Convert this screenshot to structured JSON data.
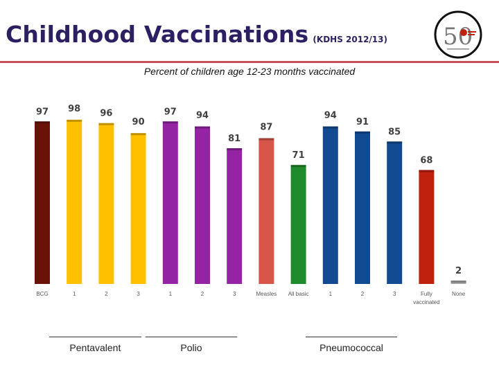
{
  "title": "Childhood Vaccinations",
  "title_note": "(KDHS 2012/13)",
  "logo": {
    "number": "50",
    "name": "anniversary-logo"
  },
  "chart_data": {
    "type": "bar",
    "title": "Percent of children age 12-23 months vaccinated",
    "ylim": [
      0,
      100
    ],
    "categories": [
      "BCG",
      "1",
      "2",
      "3",
      "1",
      "2",
      "3",
      "Measles",
      "All basic",
      "1",
      "2",
      "3",
      "Fully vaccinated",
      "None"
    ],
    "values": [
      97,
      98,
      96,
      90,
      97,
      94,
      81,
      87,
      71,
      94,
      91,
      85,
      68,
      2
    ],
    "colors": [
      "#6b1208",
      "#ffc000",
      "#ffc000",
      "#ffc000",
      "#9424a4",
      "#9424a4",
      "#9424a4",
      "#d8554a",
      "#1f8a2c",
      "#124a92",
      "#124a92",
      "#124a92",
      "#c0200e",
      "#a6a6a6"
    ],
    "groups": [
      {
        "name": "Pentavalent",
        "start": 1,
        "end": 3
      },
      {
        "name": "Polio",
        "start": 4,
        "end": 6
      },
      {
        "name": "Pneumococcal",
        "start": 9,
        "end": 11
      }
    ]
  }
}
